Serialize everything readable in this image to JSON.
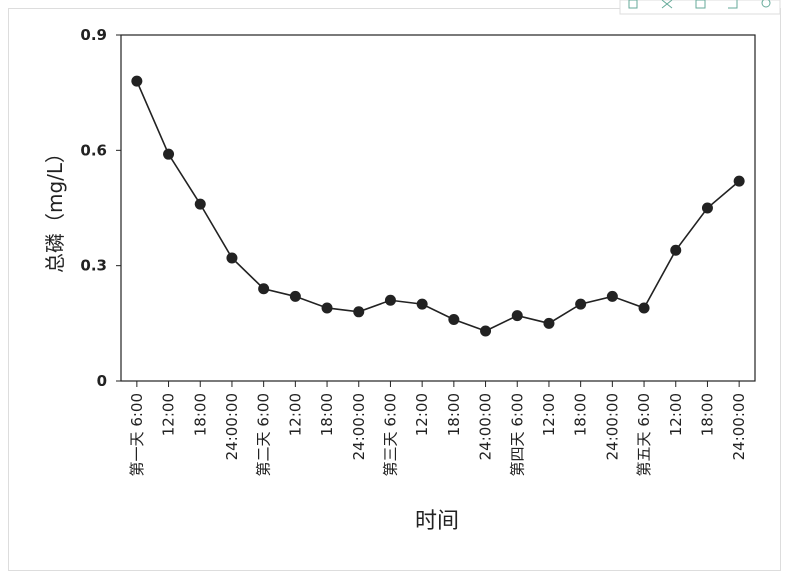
{
  "chart_data": {
    "type": "line",
    "categories": [
      "第一天 6:00",
      "12:00",
      "18:00",
      "24:00:00",
      "第二天 6:00",
      "12:00",
      "18:00",
      "24:00:00",
      "第三天 6:00",
      "12:00",
      "18:00",
      "24:00:00",
      "第四天 6:00",
      "12:00",
      "18:00",
      "24:00:00",
      "第五天 6:00",
      "12:00",
      "18:00",
      "24:00:00"
    ],
    "values": [
      0.78,
      0.59,
      0.46,
      0.32,
      0.24,
      0.22,
      0.19,
      0.18,
      0.21,
      0.2,
      0.16,
      0.13,
      0.17,
      0.15,
      0.2,
      0.22,
      0.19,
      0.34,
      0.45,
      0.52
    ],
    "color": "#222222",
    "ylim": [
      0,
      0.9
    ],
    "yticks": [
      0,
      0.3,
      0.6,
      0.9
    ],
    "x_label": "时间",
    "y_label": "总磷（mg/L）"
  }
}
